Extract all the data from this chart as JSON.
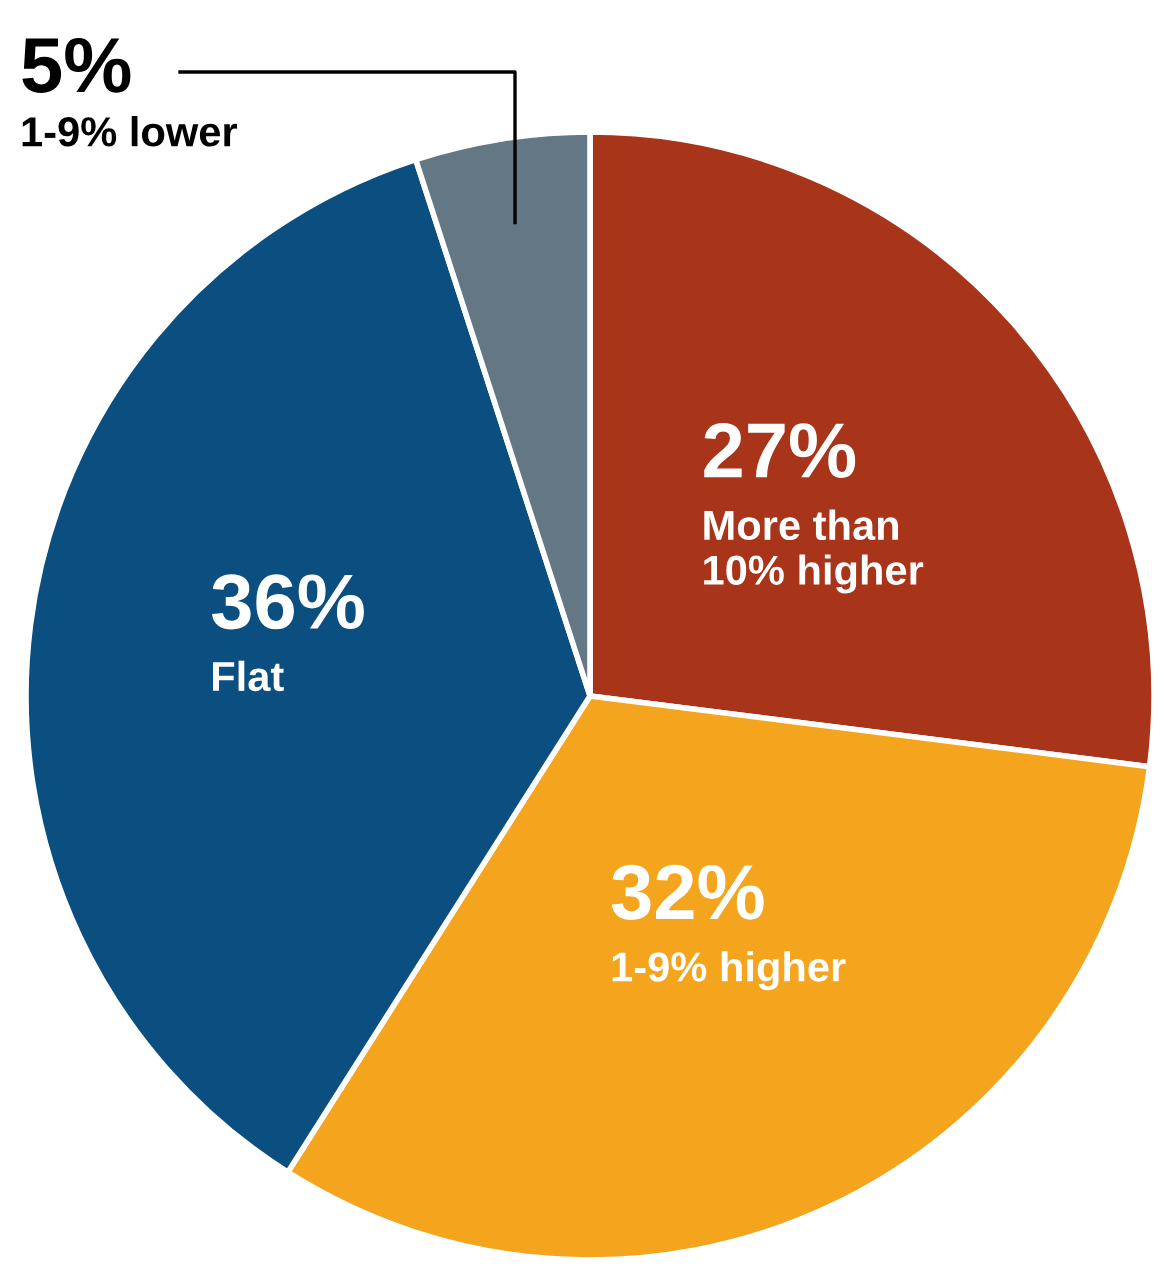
{
  "chart_data": {
    "type": "pie",
    "categories": [
      "More than\n10% higher",
      "1-9% higher",
      "Flat",
      "1-9% lower"
    ],
    "values": [
      27,
      32,
      36,
      5
    ],
    "value_labels": [
      "27%",
      "32%",
      "36%",
      "5%"
    ],
    "colors": [
      "#a8341a",
      "#f5a41d",
      "#0b4f80",
      "#647784"
    ]
  }
}
